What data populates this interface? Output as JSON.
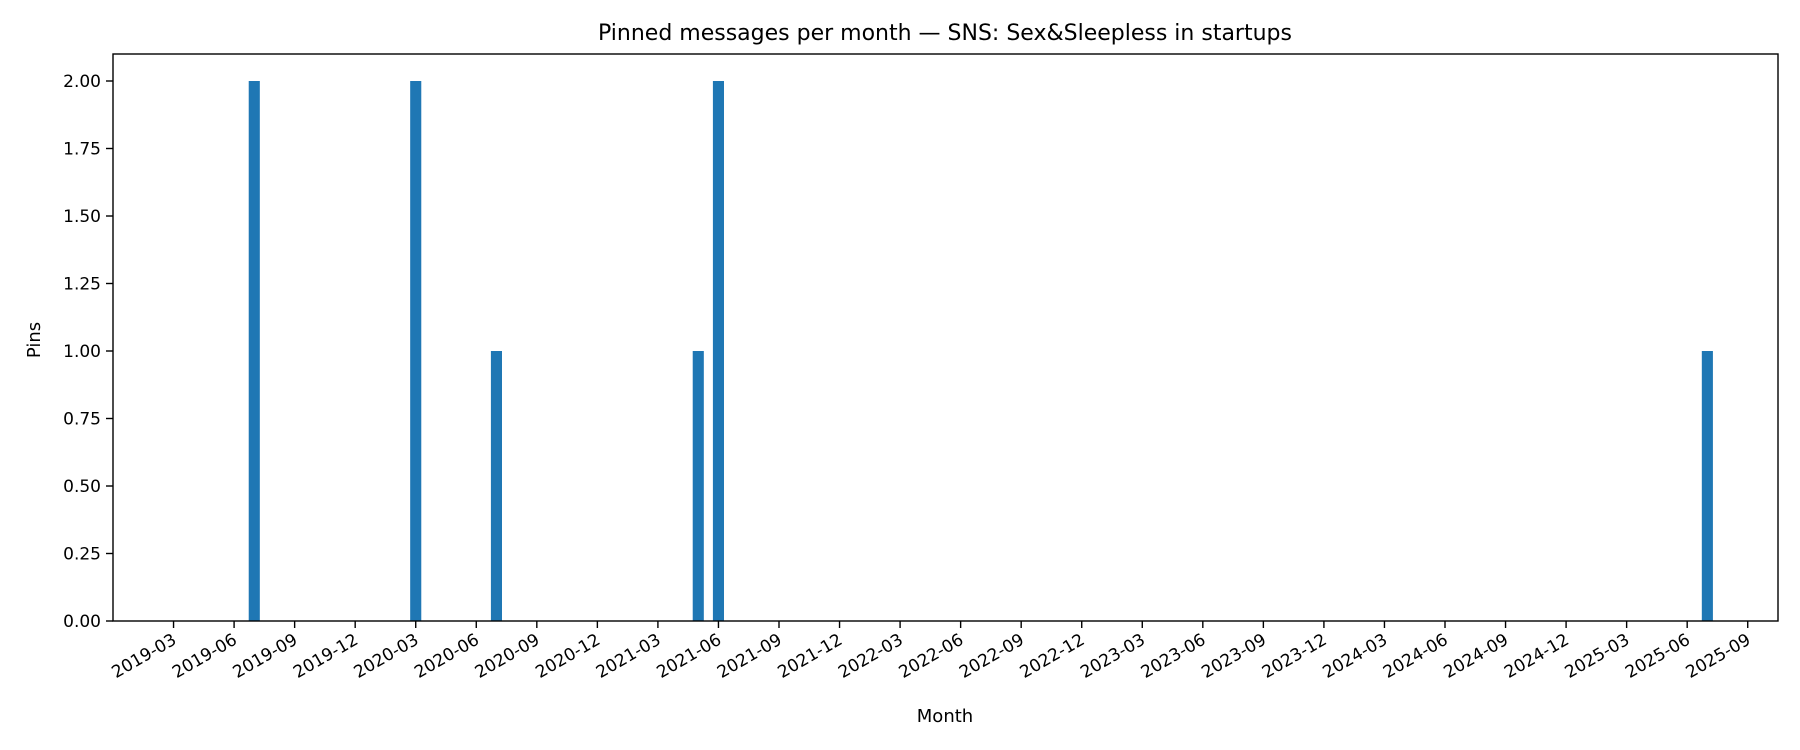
{
  "chart_data": {
    "type": "bar",
    "title": "Pinned messages per month — SNS: Sex&Sleepless in startups",
    "xlabel": "Month",
    "ylabel": "Pins",
    "x_scale": "date",
    "xlim": [
      "2019-03",
      "2025-10"
    ],
    "ylim": [
      0,
      2.1
    ],
    "y_ticks": [
      "0.00",
      "0.25",
      "0.50",
      "0.75",
      "1.00",
      "1.25",
      "1.50",
      "1.75",
      "2.00"
    ],
    "x_ticks": [
      "2019-03",
      "2019-06",
      "2019-09",
      "2019-12",
      "2020-03",
      "2020-06",
      "2020-09",
      "2020-12",
      "2021-03",
      "2021-06",
      "2021-09",
      "2021-12",
      "2022-03",
      "2022-06",
      "2022-09",
      "2022-12",
      "2023-03",
      "2023-06",
      "2023-09",
      "2023-12",
      "2024-03",
      "2024-06",
      "2024-09",
      "2024-12",
      "2025-03",
      "2025-06",
      "2025-09"
    ],
    "bars": [
      {
        "month": "2019-07",
        "value": 2
      },
      {
        "month": "2020-03",
        "value": 2
      },
      {
        "month": "2020-07",
        "value": 1
      },
      {
        "month": "2021-05",
        "value": 1
      },
      {
        "month": "2021-06",
        "value": 2
      },
      {
        "month": "2025-07",
        "value": 1
      }
    ],
    "grid": false,
    "legend": "none",
    "bar_color": "#1f77b4"
  }
}
